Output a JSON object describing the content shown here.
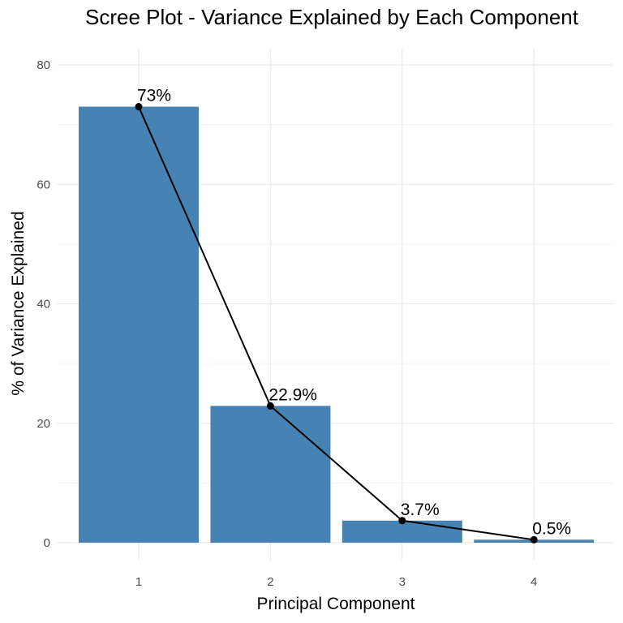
{
  "chart_data": {
    "type": "bar",
    "title": "Scree Plot - Variance Explained by Each Component",
    "xlabel": "Principal Component",
    "ylabel": "% of Variance Explained",
    "categories": [
      "1",
      "2",
      "3",
      "4"
    ],
    "values": [
      73.0,
      22.9,
      3.7,
      0.5
    ],
    "data_labels": [
      "73%",
      "22.9%",
      "3.7%",
      "0.5%"
    ],
    "line_overlay": true,
    "ylim": [
      0,
      80
    ],
    "yticks": [
      0,
      20,
      40,
      60,
      80
    ],
    "grid": true,
    "legend": "none",
    "colors": {
      "bar": "#4682b4",
      "line": "#000000",
      "point": "#000000"
    }
  }
}
